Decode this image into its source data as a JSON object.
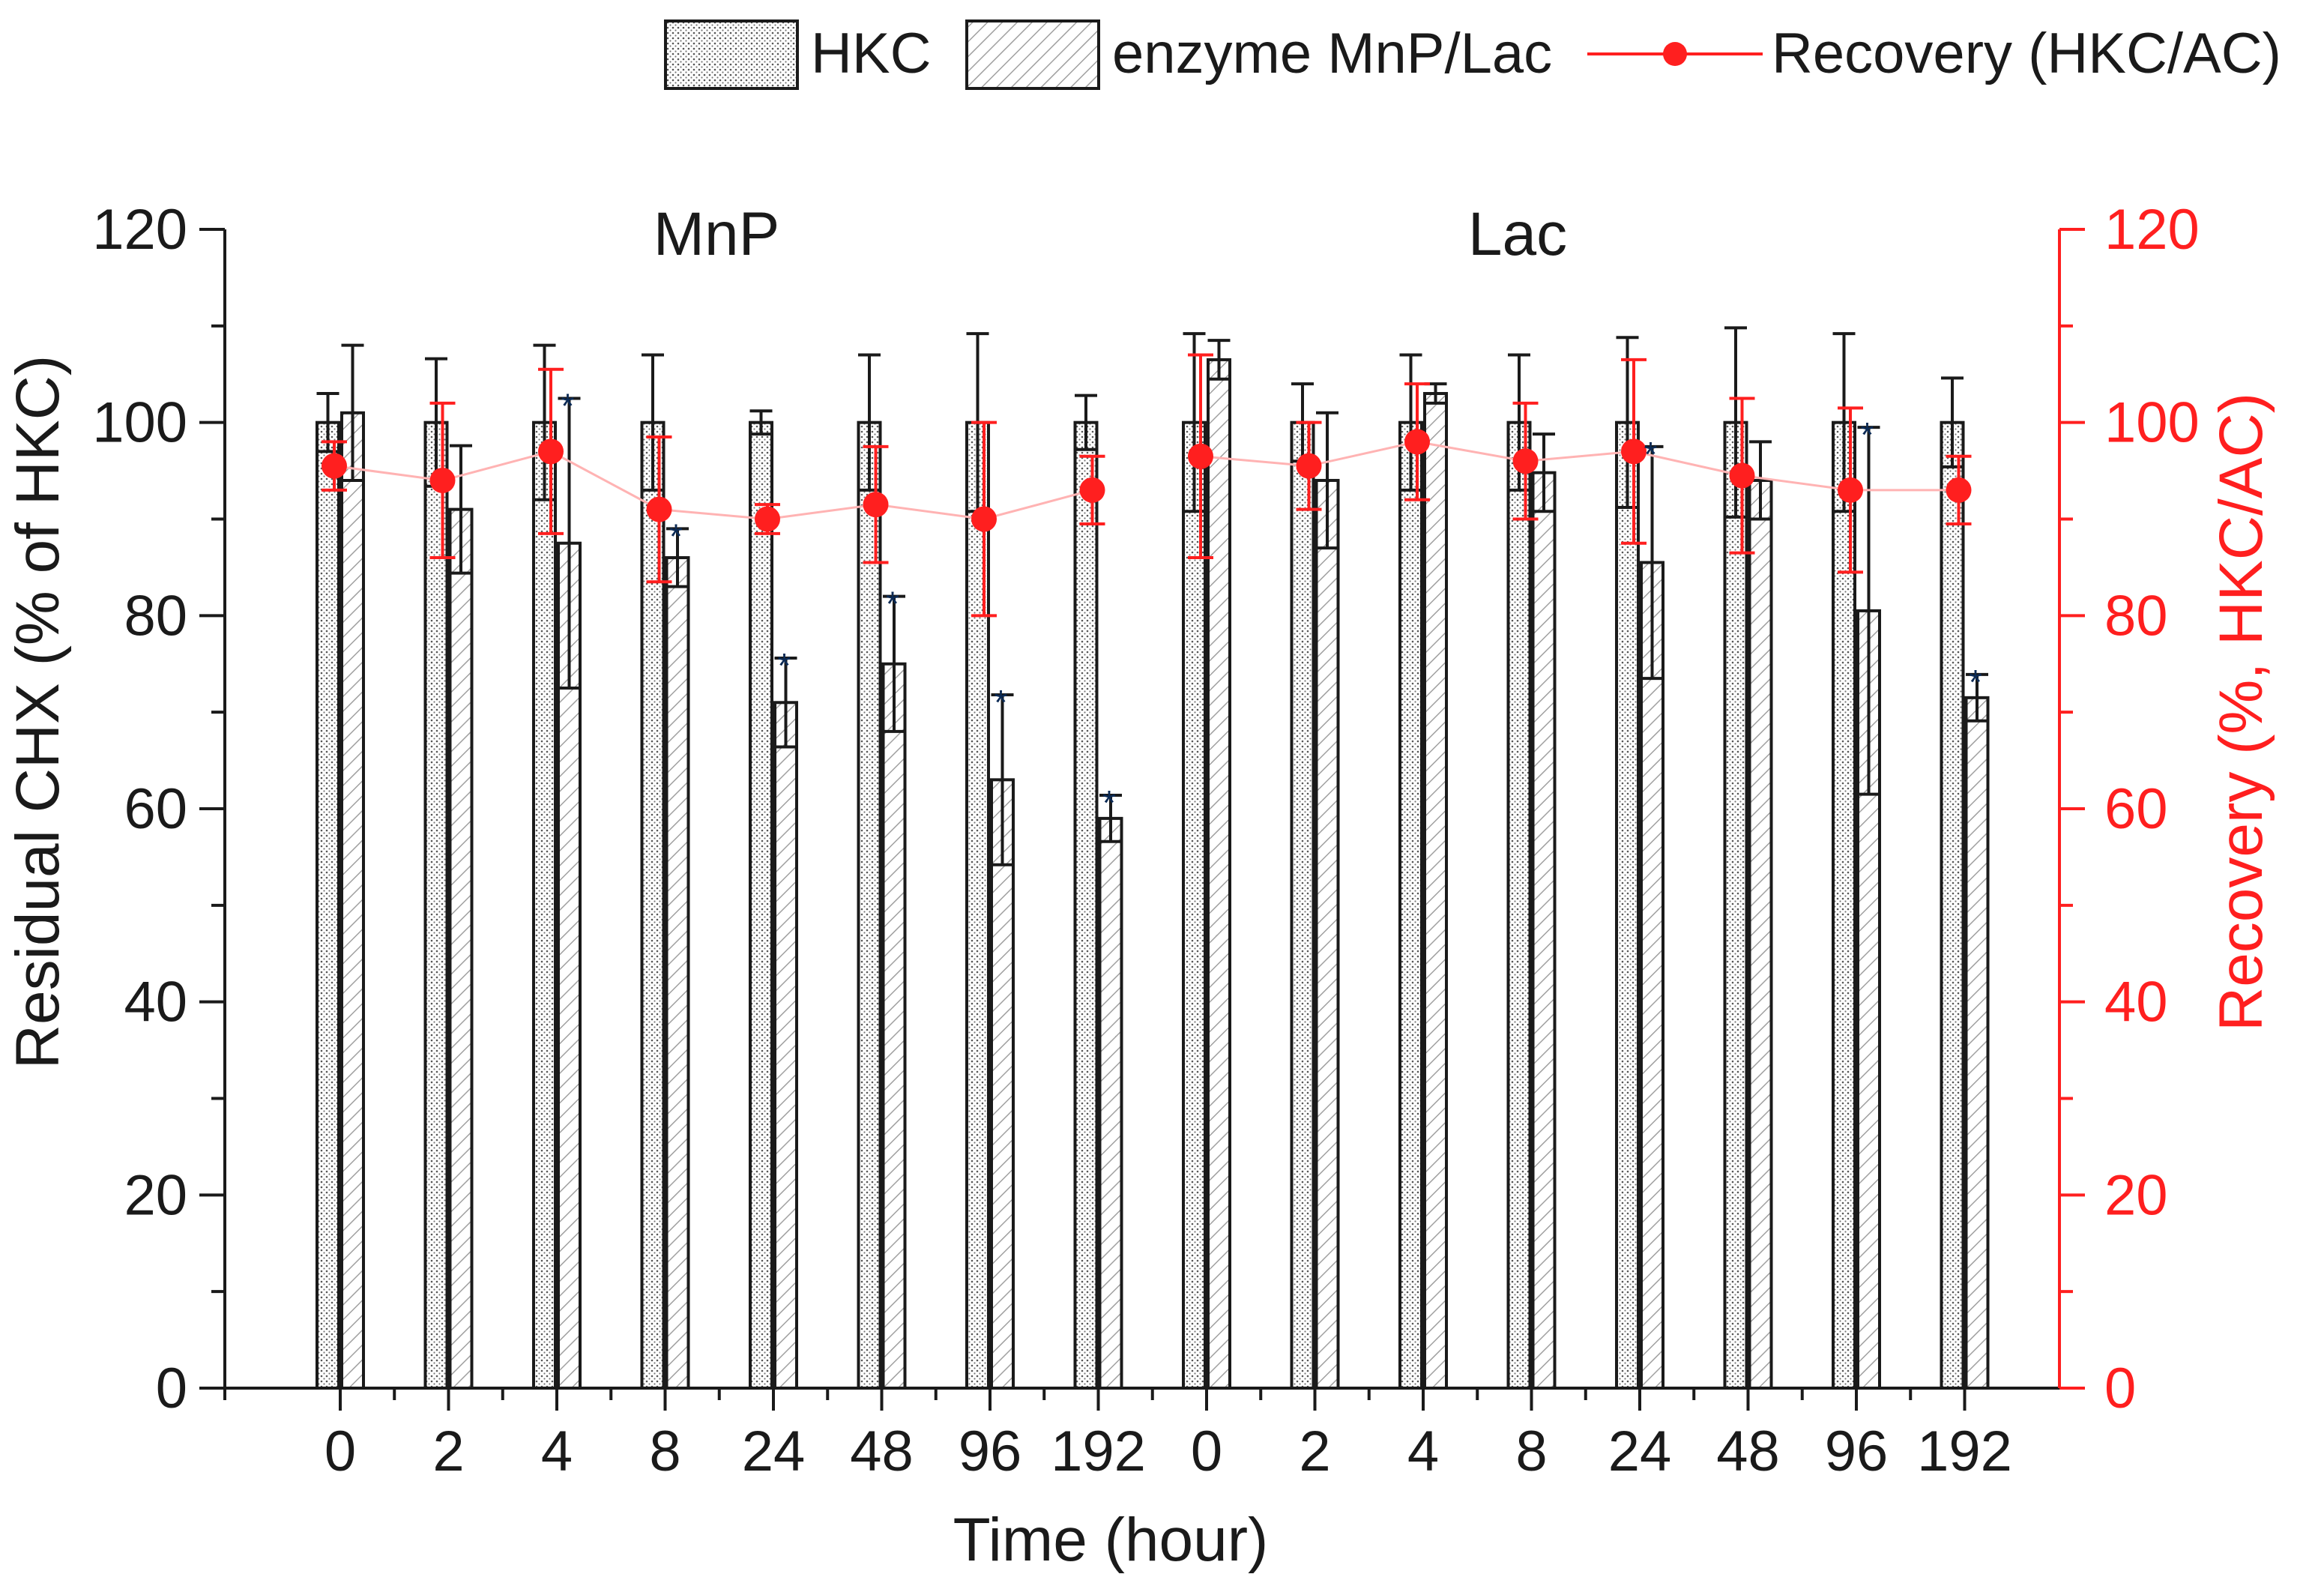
{
  "chart_data": {
    "type": "bar",
    "xlabel": "Time (hour)",
    "ylabel": "Residual CHX (% of HKC)",
    "ylabel_right": "Recovery (%, HKC/AC)",
    "ylim": [
      0,
      120
    ],
    "ylim_right": [
      0,
      120
    ],
    "yticks": [
      0,
      20,
      40,
      60,
      80,
      100,
      120
    ],
    "yticks_right": [
      0,
      20,
      40,
      60,
      80,
      100,
      120
    ],
    "groups": [
      {
        "label": "MnP",
        "categories": [
          "0",
          "2",
          "4",
          "8",
          "24",
          "48",
          "96",
          "192"
        ]
      },
      {
        "label": "Lac",
        "categories": [
          "0",
          "2",
          "4",
          "8",
          "24",
          "48",
          "96",
          "192"
        ]
      }
    ],
    "series": [
      {
        "name": "HKC",
        "kind": "bar",
        "pattern": "dots",
        "values": [
          100,
          100,
          100,
          100,
          100,
          100,
          100,
          100,
          100,
          100,
          100,
          100,
          100,
          100,
          100,
          100
        ],
        "errors": [
          3,
          6.6,
          8,
          7,
          1.2,
          7,
          9.2,
          2.8,
          9.2,
          4,
          7,
          7,
          8.8,
          9.8,
          9.2,
          4.6
        ]
      },
      {
        "name": "enzyme MnP/Lac",
        "kind": "bar",
        "pattern": "hatch",
        "values": [
          101,
          91,
          87.5,
          86,
          71,
          75,
          63,
          59,
          106.5,
          94,
          103,
          94.8,
          85.5,
          94,
          80.5,
          71.5
        ],
        "errors": [
          7,
          6.6,
          15,
          3,
          4.6,
          7,
          8.8,
          2.4,
          2,
          7,
          1,
          4,
          12,
          4,
          19,
          2.4
        ]
      },
      {
        "name": "Recovery (HKC/AC)",
        "kind": "line",
        "axis": "right",
        "values": [
          95.5,
          94,
          97,
          91,
          90,
          91.5,
          90,
          93,
          96.5,
          95.5,
          98,
          96,
          97,
          94.5,
          93,
          93
        ],
        "errors": [
          2.5,
          8,
          8.5,
          7.5,
          1.5,
          6,
          10,
          3.5,
          10.5,
          4.5,
          6,
          6,
          9.5,
          8,
          8.5,
          3.5
        ]
      }
    ],
    "significant_marks": [
      {
        "index": 2,
        "symbol": "*"
      },
      {
        "index": 3,
        "symbol": "*"
      },
      {
        "index": 4,
        "symbol": "*"
      },
      {
        "index": 5,
        "symbol": "*"
      },
      {
        "index": 6,
        "symbol": "*"
      },
      {
        "index": 7,
        "symbol": "*"
      },
      {
        "index": 12,
        "symbol": "*"
      },
      {
        "index": 14,
        "symbol": "*"
      },
      {
        "index": 15,
        "symbol": "*"
      }
    ],
    "legend": [
      "HKC",
      "enzyme MnP/Lac",
      "Recovery (HKC/AC)"
    ],
    "legend_position": "top-right",
    "colors": {
      "axis": "#1a1a1a",
      "recovery": "#ff1f1f",
      "recovery_line": "#ffb3b3",
      "star": "#0b2a55",
      "hatch": "#9a9a9a",
      "dots": "#555555"
    }
  }
}
